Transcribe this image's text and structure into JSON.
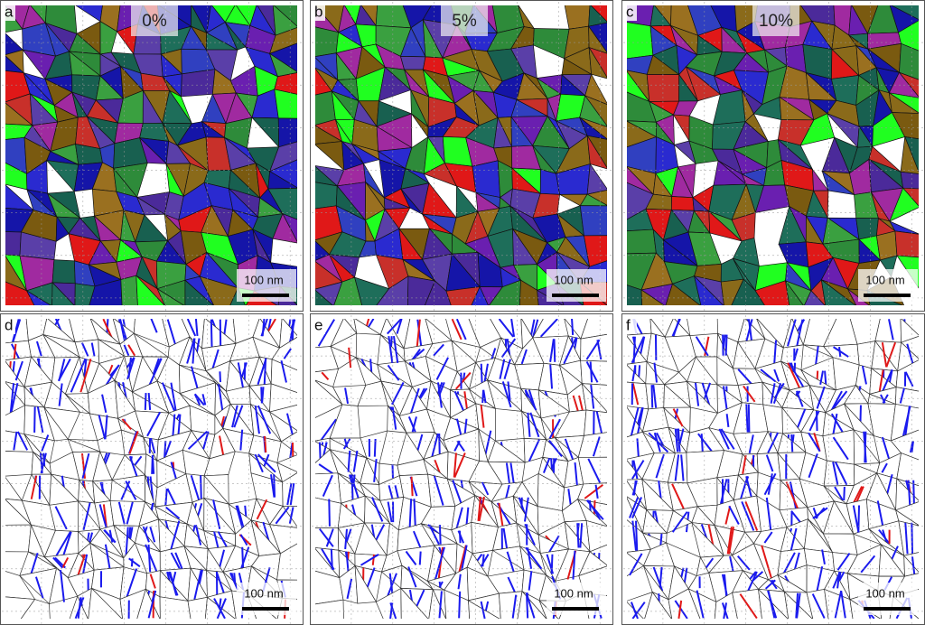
{
  "panels": [
    {
      "label": "a",
      "title": "0%",
      "scale_bar": "100 nm"
    },
    {
      "label": "b",
      "title": "5%",
      "scale_bar": "100 nm"
    },
    {
      "label": "c",
      "title": "10%",
      "scale_bar": "100 nm"
    },
    {
      "label": "d",
      "scale_bar": "100 nm"
    },
    {
      "label": "e",
      "scale_bar": "100 nm"
    },
    {
      "label": "f",
      "scale_bar": "100 nm"
    }
  ]
}
